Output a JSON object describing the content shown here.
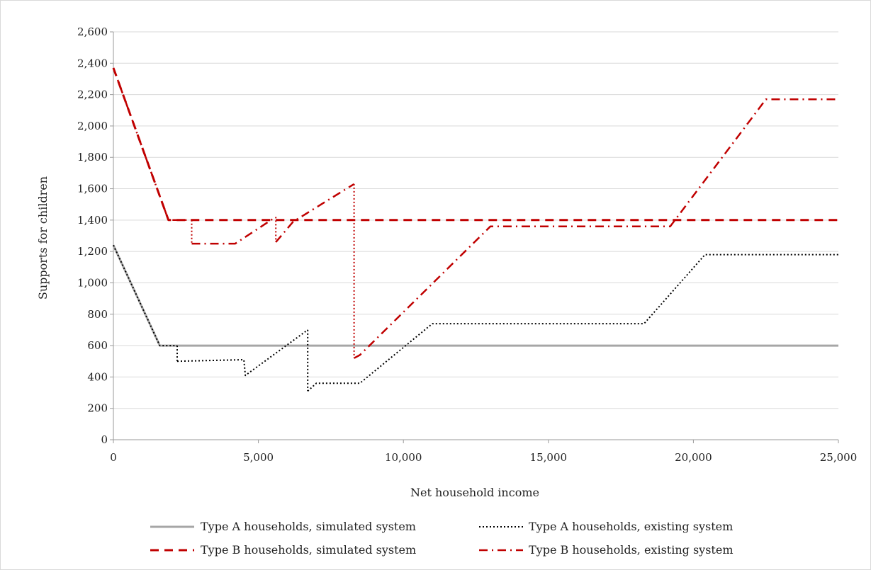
{
  "chart_data": {
    "type": "line",
    "xlabel": "Net household income",
    "ylabel": "Supports for children",
    "xlim": [
      0,
      25000
    ],
    "ylim": [
      0,
      2600
    ],
    "x_ticks": [
      0,
      5000,
      10000,
      15000,
      20000,
      25000
    ],
    "x_tick_labels": [
      "0",
      "5,000",
      "10,000",
      "15,000",
      "20,000",
      "25,000"
    ],
    "y_ticks": [
      0,
      200,
      400,
      600,
      800,
      1000,
      1200,
      1400,
      1600,
      1800,
      2000,
      2200,
      2400,
      2600
    ],
    "y_tick_labels": [
      "0",
      "200",
      "400",
      "600",
      "800",
      "1,000",
      "1,200",
      "1,400",
      "1,600",
      "1,800",
      "2,000",
      "2,200",
      "2,400",
      "2,600"
    ],
    "grid": "horizontal",
    "legend_position": "bottom",
    "series": [
      {
        "name": "Type A households, simulated system",
        "color": "#a6a6a6",
        "style": "solid",
        "x": [
          0,
          1600,
          25000
        ],
        "y": [
          1240,
          600,
          600
        ]
      },
      {
        "name": "Type A households, existing system",
        "color": "#000000",
        "style": "dotted",
        "x": [
          0,
          1600,
          2200,
          2200,
          4500,
          4550,
          6700,
          6700,
          7000,
          8500,
          11000,
          18300,
          20400,
          25000
        ],
        "y": [
          1240,
          600,
          600,
          500,
          510,
          410,
          700,
          310,
          360,
          360,
          740,
          740,
          1180,
          1180
        ],
        "segments": [
          [
            0,
            1,
            2
          ],
          [
            2,
            3
          ],
          [
            3,
            4,
            5,
            6
          ],
          [
            6,
            7
          ],
          [
            7,
            8,
            9,
            10,
            11,
            12,
            13
          ]
        ]
      },
      {
        "name": "Type B households, simulated system",
        "color": "#c00000",
        "style": "dashed",
        "x": [
          0,
          1900,
          25000
        ],
        "y": [
          2370,
          1400,
          1400
        ]
      },
      {
        "name": "Type B households, existing system",
        "color": "#c00000",
        "style": "dashdot",
        "x": [
          0,
          1900,
          2700,
          2700,
          4200,
          5600,
          5600,
          6200,
          8300,
          8300,
          8500,
          13000,
          19200,
          22500,
          25000
        ],
        "y": [
          2370,
          1400,
          1400,
          1250,
          1250,
          1420,
          1260,
          1390,
          1630,
          520,
          540,
          1360,
          1360,
          2170,
          2170
        ],
        "segments": [
          [
            0,
            1,
            2
          ],
          [
            2,
            3
          ],
          [
            3,
            4,
            5
          ],
          [
            5,
            6
          ],
          [
            6,
            7,
            8
          ],
          [
            8,
            9
          ],
          [
            9,
            10,
            11,
            12,
            13,
            14
          ]
        ]
      }
    ]
  }
}
